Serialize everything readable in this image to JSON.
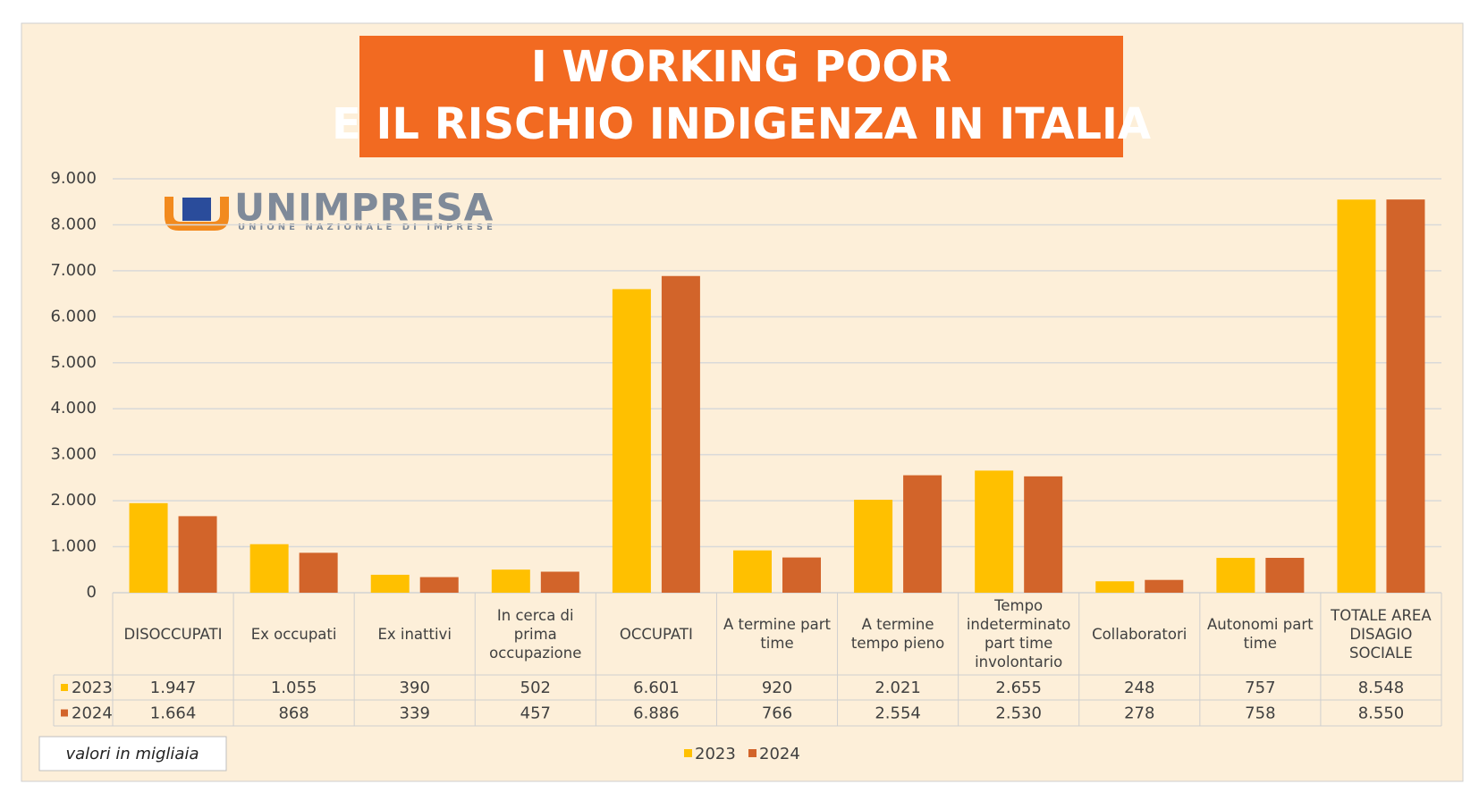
{
  "chart_data": {
    "type": "bar",
    "title": [
      "I WORKING POOR",
      "E IL RISCHIO INDIGENZA IN ITALIA"
    ],
    "logo": {
      "name": "UNIMPRESA",
      "tagline": "UNIONE NAZIONALE DI IMPRESE"
    },
    "note": "valori in migliaia",
    "categories": [
      "DISOCCUPATI",
      "Ex occupati",
      "Ex inattivi",
      "In cerca di prima occupazione",
      "OCCUPATI",
      "A termine part time",
      "A termine tempo pieno",
      "Tempo indeterminato part time involontario",
      "Collaboratori",
      "Autonomi part time",
      "TOTALE AREA DISAGIO SOCIALE"
    ],
    "series": [
      {
        "name": "2023",
        "color": "#ffc000",
        "values": [
          1947,
          1055,
          390,
          502,
          6601,
          920,
          2021,
          2655,
          248,
          757,
          8548
        ],
        "value_labels": [
          "1.947",
          "1.055",
          "390",
          "502",
          "6.601",
          "920",
          "2.021",
          "2.655",
          "248",
          "757",
          "8.548"
        ]
      },
      {
        "name": "2024",
        "color": "#d2642a",
        "values": [
          1664,
          868,
          339,
          457,
          6886,
          766,
          2554,
          2530,
          278,
          758,
          8550
        ],
        "value_labels": [
          "1.664",
          "868",
          "339",
          "457",
          "6.886",
          "766",
          "2.554",
          "2.530",
          "278",
          "758",
          "8.550"
        ]
      }
    ],
    "ylim": [
      0,
      9000
    ],
    "yticks": [
      0,
      {
        "value": 1000,
        "label": "1.000"
      },
      {
        "value": 2000,
        "label": "2.000"
      },
      {
        "value": 3000,
        "label": "3.000"
      },
      {
        "value": 4000,
        "label": "4.000"
      },
      {
        "value": 5000,
        "label": "5.000"
      },
      {
        "value": 6000,
        "label": "6.000"
      },
      {
        "value": 7000,
        "label": "7.000"
      },
      {
        "value": 8000,
        "label": "8.000"
      },
      {
        "value": 9000,
        "label": "9.000"
      }
    ],
    "grid": true,
    "legend": "bottom",
    "data_table": true
  }
}
